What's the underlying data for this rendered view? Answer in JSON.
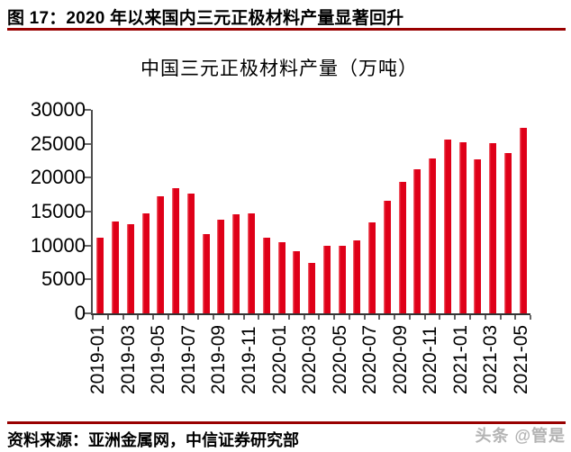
{
  "figure": {
    "caption": "图 17：2020 年以来国内三元正极材料产量显著回升",
    "source": "资料来源：亚洲金属网，中信证券研究部",
    "watermark": "头条 @管是"
  },
  "chart_data": {
    "type": "bar",
    "title": "中国三元正极材料产量（万吨）",
    "categories": [
      "2019-01",
      "2019-02",
      "2019-03",
      "2019-04",
      "2019-05",
      "2019-06",
      "2019-07",
      "2019-08",
      "2019-09",
      "2019-10",
      "2019-11",
      "2019-12",
      "2020-01",
      "2020-02",
      "2020-03",
      "2020-04",
      "2020-05",
      "2020-06",
      "2020-07",
      "2020-08",
      "2020-09",
      "2020-10",
      "2020-11",
      "2020-12",
      "2021-01",
      "2021-02",
      "2021-03",
      "2021-04",
      "2021-05"
    ],
    "values": [
      11100,
      13600,
      13200,
      14800,
      17300,
      18500,
      17700,
      11700,
      13800,
      14600,
      14800,
      11100,
      10500,
      9200,
      7400,
      9900,
      9900,
      10700,
      13400,
      16600,
      19400,
      21300,
      22900,
      25600,
      25200,
      22700,
      25100,
      23600,
      27400
    ],
    "ylim": [
      0,
      30000
    ],
    "y_ticks": [
      0,
      5000,
      10000,
      15000,
      20000,
      25000,
      30000
    ],
    "x_label_every": 2,
    "grid": false,
    "legend": false,
    "xlabel": "",
    "ylabel": ""
  },
  "colors": {
    "bar": "#df0018",
    "bar_highlight": "#f4757d",
    "rule": "#990000",
    "axis": "#4d4d4d",
    "watermark": "#b3b3b3"
  }
}
